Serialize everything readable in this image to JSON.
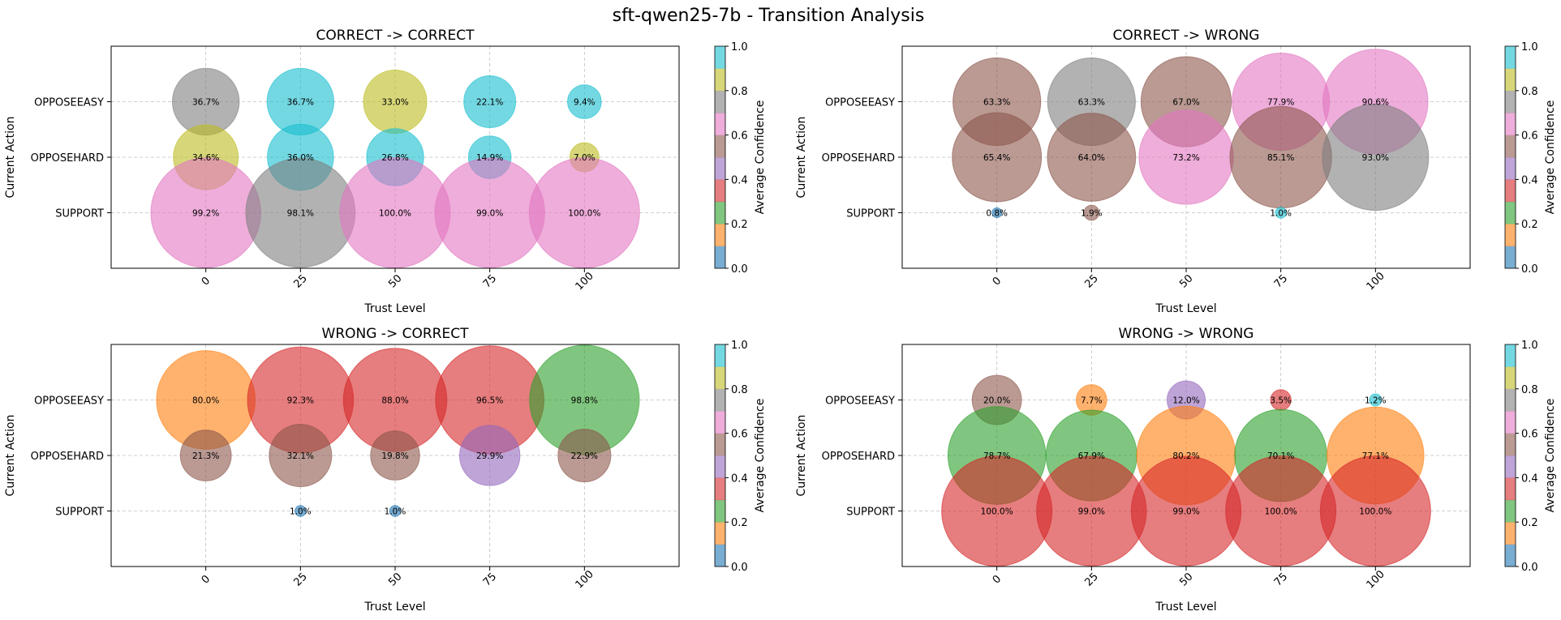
{
  "title": "sft-qwen25-7b - Transition Analysis",
  "chart_data": [
    {
      "type": "scatter",
      "title": "CORRECT -> CORRECT",
      "xlabel": "Trust Level",
      "ylabel": "Current Action",
      "x_ticks": [
        "0",
        "25",
        "50",
        "75",
        "100"
      ],
      "y_categories": [
        "SUPPORT",
        "OPPOSEHARD",
        "OPPOSEEASY"
      ],
      "colorbar_label": "Average Confidence",
      "colorbar_ticks": [
        "0.0",
        "0.2",
        "0.4",
        "0.6",
        "0.8",
        "1.0"
      ],
      "points": [
        {
          "x": 0,
          "y": "OPPOSEEASY",
          "value": 36.7,
          "label": "36.7%",
          "color": "#7f7f7f"
        },
        {
          "x": 25,
          "y": "OPPOSEEASY",
          "value": 36.7,
          "label": "36.7%",
          "color": "#17becf"
        },
        {
          "x": 50,
          "y": "OPPOSEEASY",
          "value": 33.0,
          "label": "33.0%",
          "color": "#bcbd22"
        },
        {
          "x": 75,
          "y": "OPPOSEEASY",
          "value": 22.1,
          "label": "22.1%",
          "color": "#17becf"
        },
        {
          "x": 100,
          "y": "OPPOSEEASY",
          "value": 9.4,
          "label": "9.4%",
          "color": "#17becf"
        },
        {
          "x": 0,
          "y": "OPPOSEHARD",
          "value": 34.6,
          "label": "34.6%",
          "color": "#bcbd22"
        },
        {
          "x": 25,
          "y": "OPPOSEHARD",
          "value": 36.0,
          "label": "36.0%",
          "color": "#17becf"
        },
        {
          "x": 50,
          "y": "OPPOSEHARD",
          "value": 26.8,
          "label": "26.8%",
          "color": "#17becf"
        },
        {
          "x": 75,
          "y": "OPPOSEHARD",
          "value": 14.9,
          "label": "14.9%",
          "color": "#17becf"
        },
        {
          "x": 100,
          "y": "OPPOSEHARD",
          "value": 7.0,
          "label": "7.0%",
          "color": "#bcbd22"
        },
        {
          "x": 0,
          "y": "SUPPORT",
          "value": 99.2,
          "label": "99.2%",
          "color": "#e377c2"
        },
        {
          "x": 25,
          "y": "SUPPORT",
          "value": 98.1,
          "label": "98.1%",
          "color": "#7f7f7f"
        },
        {
          "x": 50,
          "y": "SUPPORT",
          "value": 100.0,
          "label": "100.0%",
          "color": "#e377c2"
        },
        {
          "x": 75,
          "y": "SUPPORT",
          "value": 99.0,
          "label": "99.0%",
          "color": "#e377c2"
        },
        {
          "x": 100,
          "y": "SUPPORT",
          "value": 100.0,
          "label": "100.0%",
          "color": "#e377c2"
        }
      ]
    },
    {
      "type": "scatter",
      "title": "CORRECT -> WRONG",
      "xlabel": "Trust Level",
      "ylabel": "Current Action",
      "x_ticks": [
        "0",
        "25",
        "50",
        "75",
        "100"
      ],
      "y_categories": [
        "SUPPORT",
        "OPPOSEHARD",
        "OPPOSEEASY"
      ],
      "colorbar_label": "Average Confidence",
      "colorbar_ticks": [
        "0.0",
        "0.2",
        "0.4",
        "0.6",
        "0.8",
        "1.0"
      ],
      "points": [
        {
          "x": 0,
          "y": "OPPOSEEASY",
          "value": 63.3,
          "label": "63.3%",
          "color": "#8c564b"
        },
        {
          "x": 25,
          "y": "OPPOSEEASY",
          "value": 63.3,
          "label": "63.3%",
          "color": "#7f7f7f"
        },
        {
          "x": 50,
          "y": "OPPOSEEASY",
          "value": 67.0,
          "label": "67.0%",
          "color": "#8c564b"
        },
        {
          "x": 75,
          "y": "OPPOSEEASY",
          "value": 77.9,
          "label": "77.9%",
          "color": "#e377c2"
        },
        {
          "x": 100,
          "y": "OPPOSEEASY",
          "value": 90.6,
          "label": "90.6%",
          "color": "#e377c2"
        },
        {
          "x": 0,
          "y": "OPPOSEHARD",
          "value": 65.4,
          "label": "65.4%",
          "color": "#8c564b"
        },
        {
          "x": 25,
          "y": "OPPOSEHARD",
          "value": 64.0,
          "label": "64.0%",
          "color": "#8c564b"
        },
        {
          "x": 50,
          "y": "OPPOSEHARD",
          "value": 73.2,
          "label": "73.2%",
          "color": "#e377c2"
        },
        {
          "x": 75,
          "y": "OPPOSEHARD",
          "value": 85.1,
          "label": "85.1%",
          "color": "#8c564b"
        },
        {
          "x": 100,
          "y": "OPPOSEHARD",
          "value": 93.0,
          "label": "93.0%",
          "color": "#7f7f7f"
        },
        {
          "x": 0,
          "y": "SUPPORT",
          "value": 0.8,
          "label": "0.8%",
          "color": "#1f77b4"
        },
        {
          "x": 25,
          "y": "SUPPORT",
          "value": 1.9,
          "label": "1.9%",
          "color": "#8c564b"
        },
        {
          "x": 75,
          "y": "SUPPORT",
          "value": 1.0,
          "label": "1.0%",
          "color": "#17becf"
        }
      ]
    },
    {
      "type": "scatter",
      "title": "WRONG -> CORRECT",
      "xlabel": "Trust Level",
      "ylabel": "Current Action",
      "x_ticks": [
        "0",
        "25",
        "50",
        "75",
        "100"
      ],
      "y_categories": [
        "SUPPORT",
        "OPPOSEHARD",
        "OPPOSEEASY"
      ],
      "colorbar_label": "Average Confidence",
      "colorbar_ticks": [
        "0.0",
        "0.2",
        "0.4",
        "0.6",
        "0.8",
        "1.0"
      ],
      "points": [
        {
          "x": 0,
          "y": "OPPOSEEASY",
          "value": 80.0,
          "label": "80.0%",
          "color": "#ff7f0e"
        },
        {
          "x": 25,
          "y": "OPPOSEEASY",
          "value": 92.3,
          "label": "92.3%",
          "color": "#d62728"
        },
        {
          "x": 50,
          "y": "OPPOSEEASY",
          "value": 88.0,
          "label": "88.0%",
          "color": "#d62728"
        },
        {
          "x": 75,
          "y": "OPPOSEEASY",
          "value": 96.5,
          "label": "96.5%",
          "color": "#d62728"
        },
        {
          "x": 100,
          "y": "OPPOSEEASY",
          "value": 98.8,
          "label": "98.8%",
          "color": "#2ca02c"
        },
        {
          "x": 0,
          "y": "OPPOSEHARD",
          "value": 21.3,
          "label": "21.3%",
          "color": "#8c564b"
        },
        {
          "x": 25,
          "y": "OPPOSEHARD",
          "value": 32.1,
          "label": "32.1%",
          "color": "#8c564b"
        },
        {
          "x": 50,
          "y": "OPPOSEHARD",
          "value": 19.8,
          "label": "19.8%",
          "color": "#8c564b"
        },
        {
          "x": 75,
          "y": "OPPOSEHARD",
          "value": 29.9,
          "label": "29.9%",
          "color": "#9467bd"
        },
        {
          "x": 100,
          "y": "OPPOSEHARD",
          "value": 22.9,
          "label": "22.9%",
          "color": "#8c564b"
        },
        {
          "x": 25,
          "y": "SUPPORT",
          "value": 1.0,
          "label": "1.0%",
          "color": "#1f77b4"
        },
        {
          "x": 50,
          "y": "SUPPORT",
          "value": 1.0,
          "label": "1.0%",
          "color": "#1f77b4"
        }
      ]
    },
    {
      "type": "scatter",
      "title": "WRONG -> WRONG",
      "xlabel": "Trust Level",
      "ylabel": "Current Action",
      "x_ticks": [
        "0",
        "25",
        "50",
        "75",
        "100"
      ],
      "y_categories": [
        "SUPPORT",
        "OPPOSEHARD",
        "OPPOSEEASY"
      ],
      "colorbar_label": "Average Confidence",
      "colorbar_ticks": [
        "0.0",
        "0.2",
        "0.4",
        "0.6",
        "0.8",
        "1.0"
      ],
      "points": [
        {
          "x": 0,
          "y": "OPPOSEEASY",
          "value": 20.0,
          "label": "20.0%",
          "color": "#8c564b"
        },
        {
          "x": 25,
          "y": "OPPOSEEASY",
          "value": 7.7,
          "label": "7.7%",
          "color": "#ff7f0e"
        },
        {
          "x": 50,
          "y": "OPPOSEEASY",
          "value": 12.0,
          "label": "12.0%",
          "color": "#9467bd"
        },
        {
          "x": 75,
          "y": "OPPOSEEASY",
          "value": 3.5,
          "label": "3.5%",
          "color": "#d62728"
        },
        {
          "x": 100,
          "y": "OPPOSEEASY",
          "value": 1.2,
          "label": "1.2%",
          "color": "#17becf"
        },
        {
          "x": 0,
          "y": "OPPOSEHARD",
          "value": 78.7,
          "label": "78.7%",
          "color": "#2ca02c"
        },
        {
          "x": 25,
          "y": "OPPOSEHARD",
          "value": 67.9,
          "label": "67.9%",
          "color": "#2ca02c"
        },
        {
          "x": 50,
          "y": "OPPOSEHARD",
          "value": 80.2,
          "label": "80.2%",
          "color": "#ff7f0e"
        },
        {
          "x": 75,
          "y": "OPPOSEHARD",
          "value": 70.1,
          "label": "70.1%",
          "color": "#2ca02c"
        },
        {
          "x": 100,
          "y": "OPPOSEHARD",
          "value": 77.1,
          "label": "77.1%",
          "color": "#ff7f0e"
        },
        {
          "x": 0,
          "y": "SUPPORT",
          "value": 100.0,
          "label": "100.0%",
          "color": "#d62728"
        },
        {
          "x": 25,
          "y": "SUPPORT",
          "value": 99.0,
          "label": "99.0%",
          "color": "#d62728"
        },
        {
          "x": 50,
          "y": "SUPPORT",
          "value": 99.0,
          "label": "99.0%",
          "color": "#d62728"
        },
        {
          "x": 75,
          "y": "SUPPORT",
          "value": 100.0,
          "label": "100.0%",
          "color": "#d62728"
        },
        {
          "x": 100,
          "y": "SUPPORT",
          "value": 100.0,
          "label": "100.0%",
          "color": "#d62728"
        }
      ]
    }
  ],
  "colorbar_colors": [
    "#1f77b4",
    "#ff7f0e",
    "#2ca02c",
    "#d62728",
    "#9467bd",
    "#8c564b",
    "#e377c2",
    "#7f7f7f",
    "#bcbd22",
    "#17becf"
  ]
}
